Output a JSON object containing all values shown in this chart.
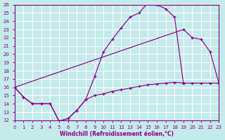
{
  "xlabel": "Windchill (Refroidissement éolien,°C)",
  "xlim": [
    0,
    23
  ],
  "ylim": [
    12,
    26
  ],
  "xticks": [
    0,
    1,
    2,
    3,
    4,
    5,
    6,
    7,
    8,
    9,
    10,
    11,
    12,
    13,
    14,
    15,
    16,
    17,
    18,
    19,
    20,
    21,
    22,
    23
  ],
  "yticks": [
    12,
    13,
    14,
    15,
    16,
    17,
    18,
    19,
    20,
    21,
    22,
    23,
    24,
    25,
    26
  ],
  "bg_color": "#c5eaea",
  "grid_color": "#ffffff",
  "line_color": "#880088",
  "curve1_x": [
    0,
    1,
    2,
    3,
    4,
    5,
    6,
    7,
    8,
    9,
    10,
    11,
    12,
    13,
    14,
    15,
    16,
    17,
    18,
    19
  ],
  "curve1_y": [
    16.0,
    14.8,
    14.0,
    14.0,
    14.0,
    11.9,
    12.2,
    13.2,
    14.5,
    17.3,
    20.3,
    21.8,
    23.2,
    24.5,
    25.0,
    26.2,
    26.0,
    25.5,
    24.5,
    16.5
  ],
  "curve2_x": [
    0,
    19,
    20,
    21,
    22,
    23
  ],
  "curve2_y": [
    16.0,
    23.0,
    22.0,
    21.8,
    20.3,
    16.5
  ],
  "curve3_x": [
    0,
    1,
    2,
    3,
    4,
    5,
    6,
    7,
    8,
    9,
    10,
    11,
    12,
    13,
    14,
    15,
    16,
    17,
    18,
    19,
    20,
    21,
    22,
    23
  ],
  "curve3_y": [
    16.0,
    14.8,
    14.0,
    14.0,
    14.0,
    11.9,
    12.2,
    13.2,
    14.5,
    15.0,
    15.2,
    15.5,
    15.7,
    15.9,
    16.1,
    16.3,
    16.4,
    16.5,
    16.6,
    16.5,
    16.5,
    16.5,
    16.5,
    16.5
  ]
}
